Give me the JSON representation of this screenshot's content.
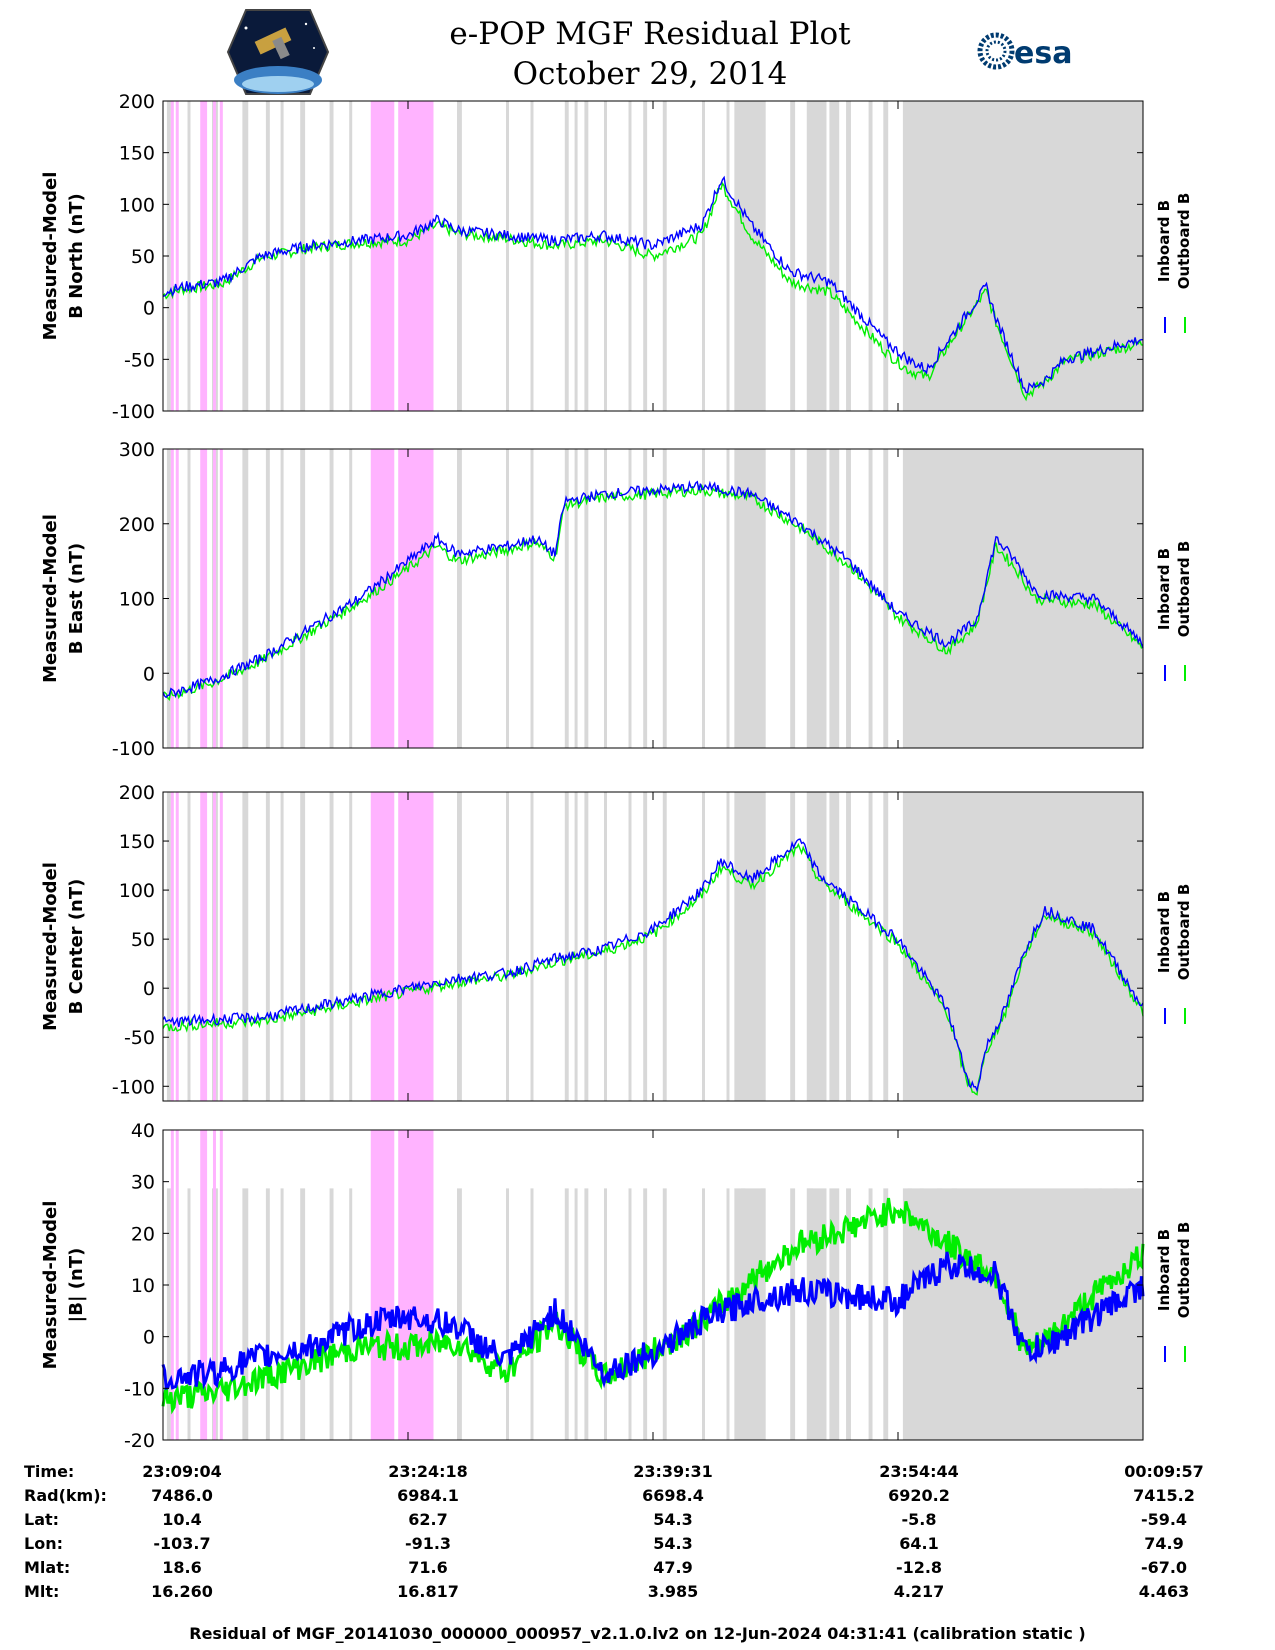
{
  "title": {
    "line1": "e-POP MGF Residual Plot",
    "line2": "October 29, 2014"
  },
  "logos": {
    "left": "cassiope-mission-logo",
    "right_text": "esa",
    "right": "esa-logo"
  },
  "colors": {
    "inboard": "#0000ff",
    "outboard": "#00ee00",
    "gap_gray": "#d8d8d8",
    "gap_pink": "#ffb3ff"
  },
  "chart_data": [
    {
      "type": "line",
      "panel": "b-north",
      "ylabel": [
        "Measured-Model",
        "B North (nT)"
      ],
      "ylim": [
        -100,
        200
      ],
      "yticks": [
        200,
        150,
        100,
        50,
        0,
        -50,
        -100
      ],
      "legend": [
        "Inboard B",
        "Outboard B"
      ],
      "series": [
        {
          "name": "Inboard B",
          "x": [
            0,
            0.02,
            0.06,
            0.1,
            0.15,
            0.2,
            0.25,
            0.28,
            0.3,
            0.35,
            0.4,
            0.45,
            0.5,
            0.55,
            0.57,
            0.6,
            0.64,
            0.68,
            0.7,
            0.74,
            0.76,
            0.78,
            0.81,
            0.84,
            0.85,
            0.88,
            0.9,
            0.92,
            1.0
          ],
          "y": [
            15,
            20,
            25,
            50,
            60,
            65,
            70,
            85,
            75,
            70,
            65,
            70,
            60,
            80,
            125,
            80,
            35,
            25,
            5,
            -35,
            -50,
            -60,
            -20,
            20,
            -10,
            -80,
            -70,
            -50,
            -30
          ]
        },
        {
          "name": "Outboard B",
          "x": [
            0,
            0.02,
            0.06,
            0.1,
            0.15,
            0.2,
            0.25,
            0.28,
            0.3,
            0.35,
            0.4,
            0.45,
            0.5,
            0.55,
            0.57,
            0.6,
            0.64,
            0.68,
            0.7,
            0.74,
            0.76,
            0.78,
            0.81,
            0.84,
            0.85,
            0.88,
            0.9,
            0.92,
            1.0
          ],
          "y": [
            12,
            18,
            23,
            48,
            58,
            63,
            65,
            80,
            72,
            67,
            60,
            65,
            50,
            70,
            120,
            70,
            25,
            15,
            -5,
            -45,
            -60,
            -68,
            -24,
            16,
            -14,
            -85,
            -72,
            -52,
            -34
          ]
        }
      ]
    },
    {
      "type": "line",
      "panel": "b-east",
      "ylabel": [
        "Measured-Model",
        "B East (nT)"
      ],
      "ylim": [
        -100,
        300
      ],
      "yticks": [
        300,
        200,
        100,
        0,
        -100
      ],
      "legend": [
        "Inboard B",
        "Outboard B"
      ],
      "series": [
        {
          "name": "Inboard B",
          "x": [
            0,
            0.05,
            0.1,
            0.15,
            0.2,
            0.25,
            0.28,
            0.3,
            0.35,
            0.38,
            0.4,
            0.41,
            0.45,
            0.5,
            0.55,
            0.6,
            0.65,
            0.7,
            0.75,
            0.8,
            0.83,
            0.85,
            0.87,
            0.89,
            0.9,
            0.95,
            1.0
          ],
          "y": [
            -30,
            -10,
            20,
            60,
            100,
            150,
            180,
            160,
            170,
            180,
            160,
            230,
            240,
            245,
            250,
            240,
            200,
            150,
            80,
            40,
            70,
            180,
            150,
            110,
            105,
            100,
            40
          ]
        },
        {
          "name": "Outboard B",
          "x": [
            0,
            0.05,
            0.1,
            0.15,
            0.2,
            0.25,
            0.28,
            0.3,
            0.35,
            0.38,
            0.4,
            0.41,
            0.45,
            0.5,
            0.55,
            0.6,
            0.65,
            0.7,
            0.75,
            0.8,
            0.83,
            0.85,
            0.87,
            0.89,
            0.9,
            0.95,
            1.0
          ],
          "y": [
            -33,
            -13,
            16,
            55,
            95,
            140,
            170,
            150,
            165,
            175,
            155,
            225,
            235,
            240,
            245,
            235,
            195,
            145,
            75,
            30,
            65,
            170,
            140,
            100,
            98,
            92,
            34
          ]
        }
      ]
    },
    {
      "type": "line",
      "panel": "b-center",
      "ylabel": [
        "Measured-Model",
        "B Center (nT)"
      ],
      "ylim": [
        -115,
        200
      ],
      "yticks": [
        200,
        150,
        100,
        50,
        0,
        -50,
        -100
      ],
      "legend": [
        "Inboard B",
        "Outboard B"
      ],
      "series": [
        {
          "name": "Inboard B",
          "x": [
            0,
            0.05,
            0.1,
            0.15,
            0.2,
            0.25,
            0.3,
            0.35,
            0.4,
            0.45,
            0.5,
            0.55,
            0.57,
            0.6,
            0.65,
            0.67,
            0.7,
            0.75,
            0.8,
            0.82,
            0.83,
            0.84,
            0.86,
            0.88,
            0.9,
            0.95,
            1.0
          ],
          "y": [
            -35,
            -32,
            -30,
            -20,
            -10,
            0,
            10,
            15,
            30,
            40,
            60,
            100,
            130,
            110,
            150,
            115,
            90,
            50,
            -20,
            -90,
            -105,
            -60,
            -20,
            40,
            80,
            60,
            -20
          ]
        },
        {
          "name": "Outboard B",
          "x": [
            0,
            0.05,
            0.1,
            0.15,
            0.2,
            0.25,
            0.3,
            0.35,
            0.4,
            0.45,
            0.5,
            0.55,
            0.57,
            0.6,
            0.65,
            0.67,
            0.7,
            0.75,
            0.8,
            0.82,
            0.83,
            0.84,
            0.86,
            0.88,
            0.9,
            0.95,
            1.0
          ],
          "y": [
            -40,
            -36,
            -34,
            -24,
            -14,
            -4,
            6,
            12,
            27,
            37,
            55,
            94,
            124,
            104,
            144,
            110,
            86,
            46,
            -24,
            -94,
            -108,
            -64,
            -24,
            36,
            75,
            56,
            -24
          ]
        }
      ]
    },
    {
      "type": "line",
      "panel": "b-magnitude",
      "ylabel": [
        "Measured-Model",
        "|B| (nT)"
      ],
      "ylim": [
        -20,
        40
      ],
      "yticks": [
        40,
        30,
        20,
        10,
        0,
        -10,
        -20
      ],
      "legend": [
        "Inboard B",
        "Outboard B"
      ],
      "series": [
        {
          "name": "Inboard B",
          "x": [
            0,
            0.05,
            0.1,
            0.15,
            0.2,
            0.25,
            0.3,
            0.35,
            0.4,
            0.45,
            0.5,
            0.55,
            0.6,
            0.65,
            0.7,
            0.75,
            0.8,
            0.85,
            0.88,
            0.9,
            0.95,
            1.0
          ],
          "y": [
            -8,
            -7,
            -4,
            -2,
            2,
            4,
            2,
            -5,
            5,
            -7,
            -3,
            3,
            7,
            9,
            8,
            7,
            14,
            12,
            -3,
            -2,
            4,
            10
          ]
        },
        {
          "name": "Outboard B",
          "x": [
            0,
            0.05,
            0.1,
            0.15,
            0.2,
            0.25,
            0.3,
            0.35,
            0.4,
            0.45,
            0.5,
            0.55,
            0.6,
            0.65,
            0.7,
            0.75,
            0.8,
            0.85,
            0.88,
            0.9,
            0.95,
            1.0
          ],
          "y": [
            -12,
            -11,
            -8,
            -5,
            -2,
            -2,
            -1,
            -7,
            3,
            -8,
            -3,
            3,
            11,
            18,
            21,
            25,
            18,
            12,
            -3,
            -1,
            8,
            16
          ]
        }
      ]
    }
  ],
  "time_axis": {
    "row_labels": [
      "Time:",
      "Rad(km):",
      "Lat:",
      "Lon:",
      "Mlat:",
      "Mlt:"
    ],
    "columns": [
      {
        "time": "23:09:04",
        "rad": "7486.0",
        "lat": "10.4",
        "lon": "-103.7",
        "mlat": "18.6",
        "mlt": "16.260"
      },
      {
        "time": "23:24:18",
        "rad": "6984.1",
        "lat": "62.7",
        "lon": "-91.3",
        "mlat": "71.6",
        "mlt": "16.817"
      },
      {
        "time": "23:39:31",
        "rad": "6698.4",
        "lat": "54.3",
        "lon": "54.3",
        "mlat": "47.9",
        "mlt": "3.985"
      },
      {
        "time": "23:54:44",
        "rad": "6920.2",
        "lat": "-5.8",
        "lon": "64.1",
        "mlat": "-12.8",
        "mlt": "4.217"
      },
      {
        "time": "00:09:57",
        "rad": "7415.2",
        "lat": "-59.4",
        "lon": "74.9",
        "mlat": "-67.0",
        "mlt": "4.463"
      }
    ]
  },
  "gaps": {
    "gray": [
      [
        0.004,
        0.008
      ],
      [
        0.025,
        0.028
      ],
      [
        0.05,
        0.056
      ],
      [
        0.081,
        0.087
      ],
      [
        0.105,
        0.109
      ],
      [
        0.12,
        0.123
      ],
      [
        0.14,
        0.145
      ],
      [
        0.17,
        0.174
      ],
      [
        0.19,
        0.193
      ],
      [
        0.27,
        0.276
      ],
      [
        0.3,
        0.305
      ],
      [
        0.35,
        0.352
      ],
      [
        0.375,
        0.378
      ],
      [
        0.41,
        0.414
      ],
      [
        0.42,
        0.423
      ],
      [
        0.43,
        0.434
      ],
      [
        0.45,
        0.453
      ],
      [
        0.475,
        0.478
      ],
      [
        0.49,
        0.494
      ],
      [
        0.51,
        0.514
      ],
      [
        0.55,
        0.553
      ],
      [
        0.575,
        0.578
      ],
      [
        0.59,
        0.594
      ],
      [
        0.61,
        0.614
      ],
      [
        0.64,
        0.645
      ],
      [
        0.657,
        0.663
      ],
      [
        0.68,
        0.69
      ],
      [
        0.697,
        0.702
      ],
      [
        0.72,
        0.724
      ],
      [
        0.735,
        0.74
      ],
      [
        0.76,
        0.764
      ],
      [
        0.772,
        0.776
      ],
      [
        0.79,
        0.795
      ],
      [
        0.805,
        0.81
      ],
      [
        0.94,
        0.944
      ],
      [
        0.955,
        0.958
      ],
      [
        0.97,
        0.974
      ],
      [
        0.985,
        0.99
      ]
    ],
    "gray_wide": [
      [
        0.583,
        0.615
      ],
      [
        0.657,
        0.677
      ],
      [
        0.755,
        1.0
      ]
    ],
    "pink": [
      [
        0.008,
        0.01
      ],
      [
        0.013,
        0.015
      ],
      [
        0.038,
        0.045
      ],
      [
        0.051,
        0.053
      ],
      [
        0.058,
        0.06
      ],
      [
        0.212,
        0.236
      ],
      [
        0.24,
        0.276
      ]
    ]
  },
  "footer": "Residual of MGF_20141030_000000_000957_v2.1.0.lv2 on 12-Jun-2024 04:31:41 (calibration static )"
}
